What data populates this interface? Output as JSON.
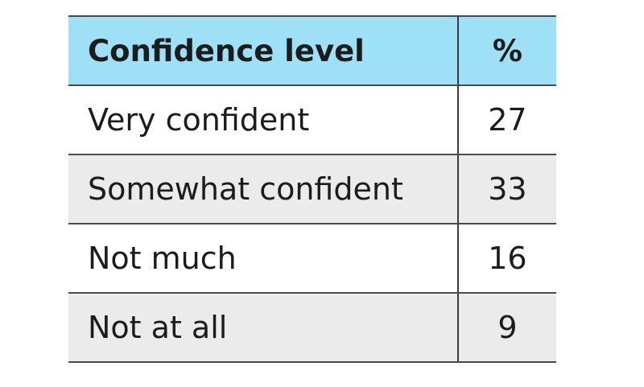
{
  "chart_data": {
    "type": "table",
    "columns": [
      "Confidence level",
      "%"
    ],
    "rows": [
      {
        "label": "Very confident",
        "value": "27"
      },
      {
        "label": "Somewhat confident",
        "value": "33"
      },
      {
        "label": "Not much",
        "value": "16"
      },
      {
        "label": "Not at all",
        "value": "9"
      }
    ],
    "colors": {
      "header_background": "#9ee0f6",
      "alternate_row_background": "#ebebeb"
    }
  }
}
